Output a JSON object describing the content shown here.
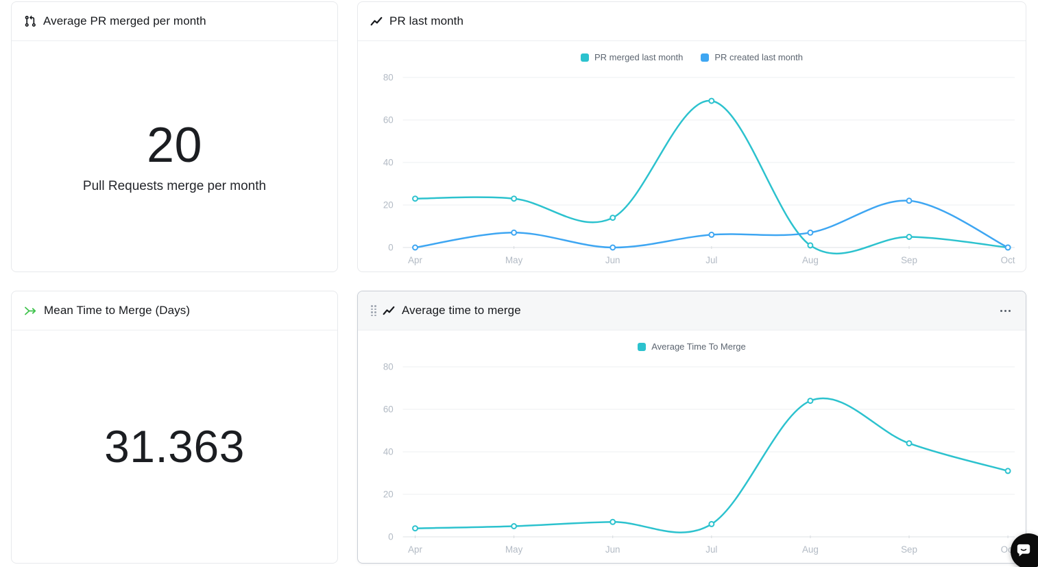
{
  "cards": {
    "avg_pr_merged": {
      "title": "Average PR merged per month",
      "value": "20",
      "label": "Pull Requests merge per month"
    },
    "pr_last_month": {
      "title": "PR last month"
    },
    "mean_time_to_merge": {
      "title": "Mean Time to Merge (Days)",
      "value": "31.363"
    },
    "avg_time_to_merge": {
      "title": "Average time to merge"
    }
  },
  "icons": {
    "avg_pr_merged": "git-pull-request-icon",
    "pr_last_month": "trend-line-icon",
    "mean_time_to_merge": "merge-arrow-icon",
    "avg_time_to_merge": "trend-line-icon",
    "card_menu": "ellipsis-icon",
    "drag": "drag-handle-icon",
    "chat": "chat-bubble-icon"
  },
  "colors": {
    "teal": "#2cc2ce",
    "blue": "#3ea6f2",
    "green_icon": "#3fc24c",
    "axis_text": "#b2bac4",
    "grid_line": "#f0f2f4",
    "zero_line": "#e3e6ea",
    "card_border": "#e7e9ec",
    "highlight_border": "#c9ced6"
  },
  "chart_data": [
    {
      "type": "line",
      "title": "PR last month",
      "x": [
        "Apr",
        "May",
        "Jun",
        "Jul",
        "Aug",
        "Sep",
        "Oct"
      ],
      "series": [
        {
          "name": "PR merged last month",
          "color": "#2cc2ce",
          "values": [
            23,
            23,
            14,
            69,
            1,
            5,
            0
          ]
        },
        {
          "name": "PR created last month",
          "color": "#3ea6f2",
          "values": [
            0,
            7,
            0,
            6,
            7,
            22,
            0
          ]
        }
      ],
      "ylim": [
        0,
        80
      ],
      "yticks": [
        0,
        20,
        40,
        60,
        80
      ],
      "grid": true,
      "legend_position": "top"
    },
    {
      "type": "line",
      "title": "Average time to merge",
      "x": [
        "Apr",
        "May",
        "Jun",
        "Jul",
        "Aug",
        "Sep",
        "Oct"
      ],
      "series": [
        {
          "name": "Average Time To Merge",
          "color": "#2cc2ce",
          "values": [
            4,
            5,
            7,
            6,
            64,
            44,
            31
          ]
        }
      ],
      "ylim": [
        0,
        80
      ],
      "yticks": [
        0,
        20,
        40,
        60,
        80
      ],
      "grid": true,
      "legend_position": "top"
    }
  ]
}
